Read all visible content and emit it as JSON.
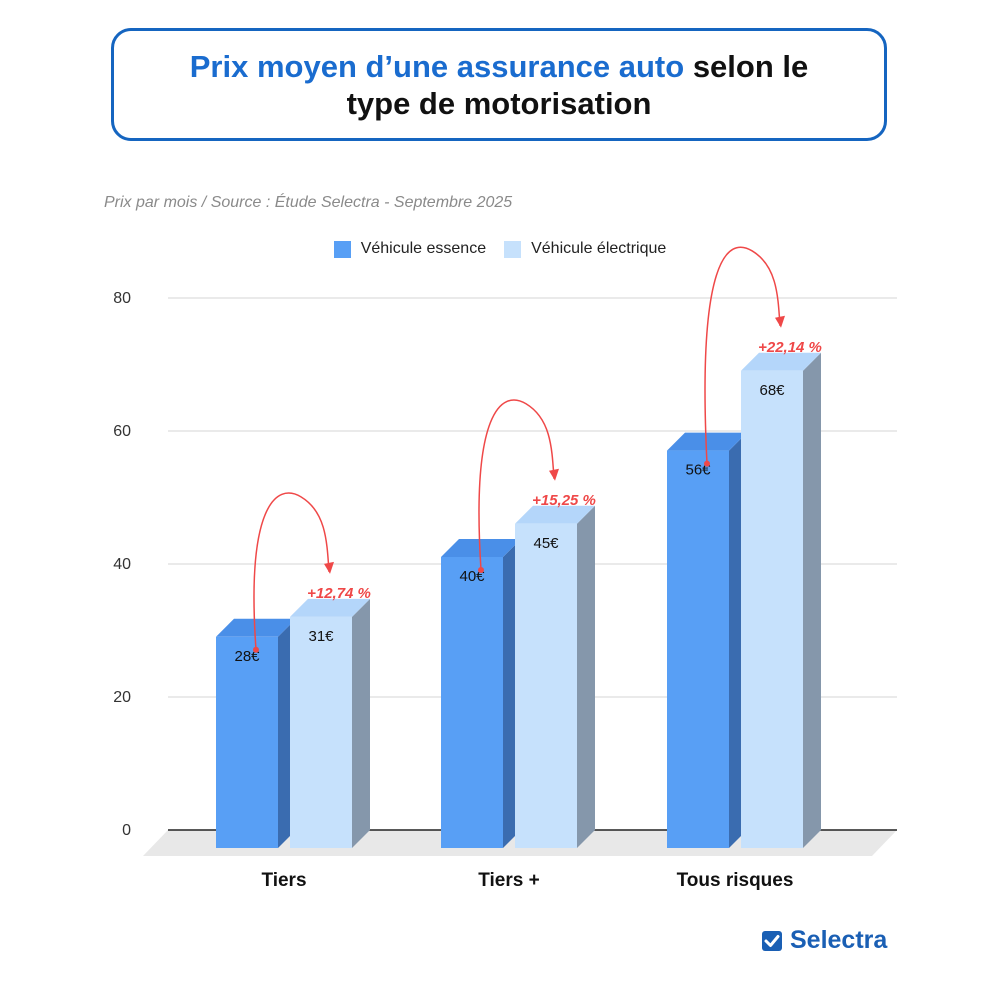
{
  "title": {
    "accent": "Prix moyen d’une assurance auto",
    "rest_line1": " selon le",
    "line2": "type de motorisation"
  },
  "subtitle": "Prix par mois / Source : Étude Selectra - Septembre 2025",
  "brand": "Selectra",
  "colors": {
    "essence": "#589ff5",
    "essence_side": "#3a6cb0",
    "essence_top": "#4a8fe8",
    "electrique": "#c6e1fc",
    "electrique_side": "#8597ab",
    "electrique_top": "#b4d6fa",
    "arrow": "#ef4848",
    "grid": "#d4d4d4",
    "brand": "#1a5fb4",
    "title_border": "#1565c0"
  },
  "chart_data": {
    "type": "bar",
    "categories": [
      "Tiers",
      "Tiers +",
      "Tous risques"
    ],
    "series": [
      {
        "name": "Véhicule essence",
        "values": [
          28,
          40,
          56
        ],
        "labels": [
          "28€",
          "40€",
          "56€"
        ]
      },
      {
        "name": "Véhicule électrique",
        "values": [
          31,
          45,
          68
        ],
        "labels": [
          "31€",
          "45€",
          "68€"
        ]
      }
    ],
    "annotations": [
      "+12,74 %",
      "+15,25 %",
      "+22,14 %"
    ],
    "yticks": [
      "0",
      "20",
      "40",
      "60",
      "80"
    ],
    "ylim": [
      0,
      80
    ],
    "grid": true,
    "legend": "top-center"
  }
}
